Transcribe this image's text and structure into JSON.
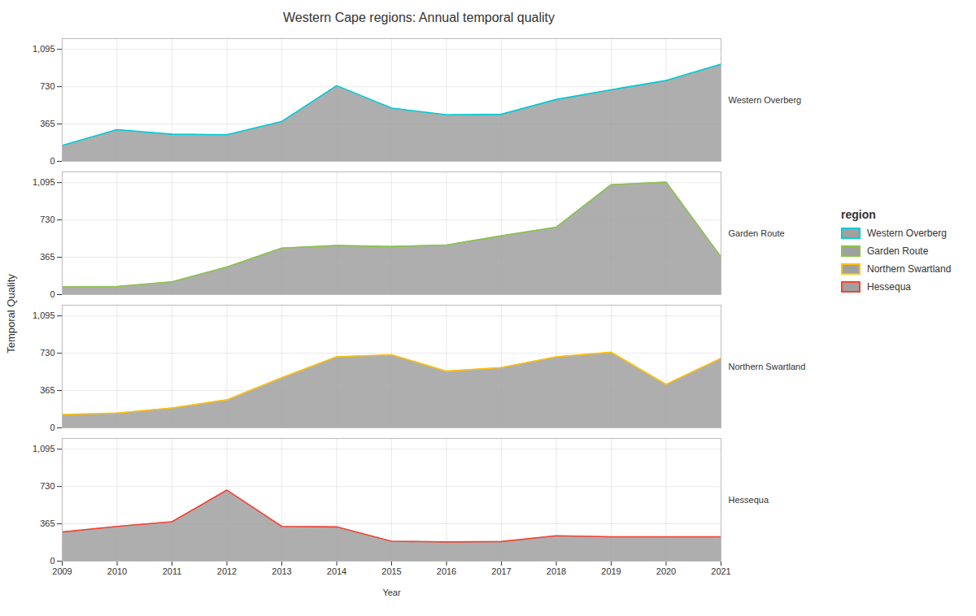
{
  "chart_data": {
    "type": "area",
    "title": "Western Cape regions: Annual temporal quality",
    "xlabel": "Year",
    "ylabel": "Temporal Quality",
    "x": [
      2009,
      2010,
      2011,
      2012,
      2013,
      2014,
      2015,
      2016,
      2017,
      2018,
      2019,
      2020,
      2021
    ],
    "series": [
      {
        "name": "Western Overberg",
        "color": "#00CDD6",
        "values": [
          155,
          310,
          265,
          260,
          390,
          740,
          520,
          455,
          460,
          605,
          700,
          790,
          950
        ]
      },
      {
        "name": "Garden Route",
        "color": "#8BC34A",
        "values": [
          75,
          80,
          125,
          270,
          455,
          480,
          470,
          485,
          575,
          660,
          1075,
          1100,
          370
        ]
      },
      {
        "name": "Northern Swartland",
        "color": "#FFC107",
        "values": [
          130,
          145,
          195,
          275,
          490,
          695,
          715,
          555,
          590,
          695,
          740,
          425,
          680
        ]
      },
      {
        "name": "Hessequa",
        "color": "#F44336",
        "values": [
          285,
          340,
          385,
          695,
          340,
          335,
          195,
          188,
          192,
          248,
          238,
          238,
          238
        ]
      }
    ],
    "color": "#A0A0A0",
    "xlim": [
      2009,
      2021
    ],
    "xticks": [
      2009,
      2010,
      2011,
      2012,
      2013,
      2014,
      2015,
      2016,
      2017,
      2018,
      2019,
      2020,
      2021
    ],
    "ylim": [
      0,
      1200
    ],
    "yticks": [
      0,
      365,
      730,
      1095
    ],
    "grid": true,
    "legend": "right",
    "legend_title": "region"
  }
}
